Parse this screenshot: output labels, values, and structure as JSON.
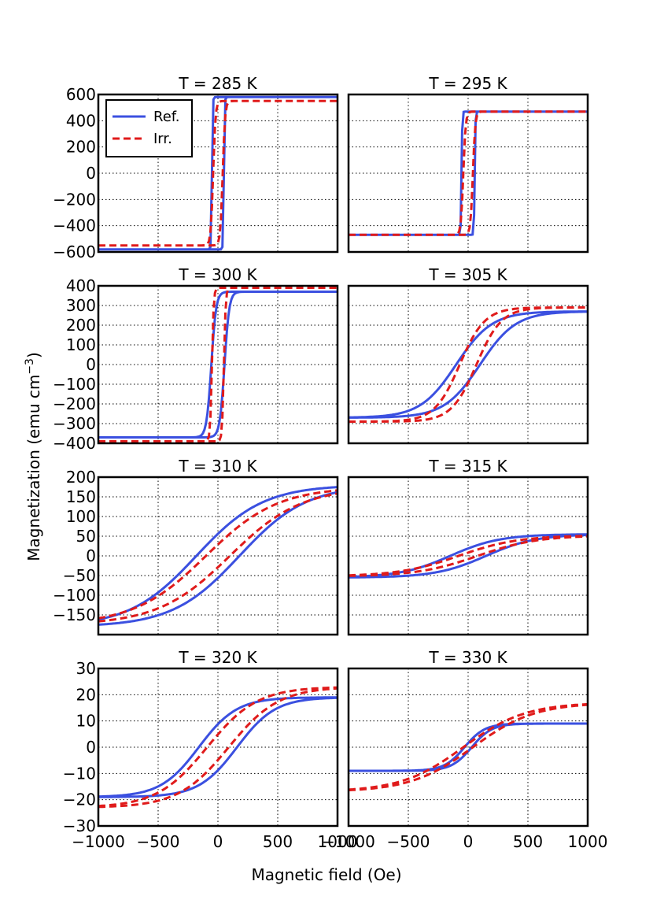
{
  "chart_data": {
    "type": "line",
    "xlabel": "Magnetic field (Oe)",
    "ylabel": "Magnetization (emu cm",
    "ylabel_superscript": "−3",
    "ylabel_close": ")",
    "xlim": [
      -1000,
      1000
    ],
    "x_ticks": [
      "−1000",
      "−500",
      "0",
      "500",
      "1000"
    ],
    "grid": true,
    "legend": {
      "placement": "top-left of first panel",
      "entries": [
        "Ref.",
        "Irr."
      ]
    },
    "series_colors": {
      "Ref.": "#3b50e0",
      "Irr.": "#e01b1b"
    },
    "panels": [
      {
        "title": "T = 285 K",
        "ylim": [
          -600,
          600
        ],
        "y_ticks": [
          "600",
          "400",
          "200",
          "0",
          "−200",
          "−400",
          "−600"
        ],
        "series": [
          {
            "name": "Ref.",
            "style": "solid",
            "kind": "square",
            "Ms": 580,
            "Hc": 50,
            "w": 6
          },
          {
            "name": "Irr.",
            "style": "dashed",
            "kind": "square",
            "Ms": 550,
            "Hc": 40,
            "w": 20
          }
        ]
      },
      {
        "title": "T = 295 K",
        "ylim": [
          -600,
          600
        ],
        "y_ticks": [],
        "series": [
          {
            "name": "Ref.",
            "style": "solid",
            "kind": "square",
            "Ms": 470,
            "Hc": 55,
            "w": 6
          },
          {
            "name": "Irr.",
            "style": "dashed",
            "kind": "square",
            "Ms": 470,
            "Hc": 40,
            "w": 20
          }
        ]
      },
      {
        "title": "T = 300 K",
        "ylim": [
          -400,
          400
        ],
        "y_ticks": [
          "400",
          "300",
          "200",
          "100",
          "0",
          "−100",
          "−200",
          "−300",
          "−400"
        ],
        "series": [
          {
            "name": "Ref.",
            "style": "solid",
            "kind": "square",
            "Ms": 370,
            "Hc": 55,
            "w": 40
          },
          {
            "name": "Irr.",
            "style": "dashed",
            "kind": "square",
            "Ms": 390,
            "Hc": 50,
            "w": 15
          }
        ]
      },
      {
        "title": "T = 305 K",
        "ylim": [
          -400,
          400
        ],
        "y_ticks": [],
        "series": [
          {
            "name": "Ref.",
            "style": "solid",
            "kind": "soft",
            "Ms": 270,
            "Hc": 100,
            "w": 300
          },
          {
            "name": "Irr.",
            "style": "dashed",
            "kind": "soft",
            "Ms": 290,
            "Hc": 70,
            "w": 210
          }
        ]
      },
      {
        "title": "T = 310 K",
        "ylim": [
          -200,
          200
        ],
        "y_ticks": [
          "200",
          "150",
          "100",
          "50",
          "0",
          "−50",
          "−100",
          "−150"
        ],
        "series": [
          {
            "name": "Ref.",
            "style": "solid",
            "kind": "soft",
            "Ms": 180,
            "Hc": 180,
            "w": 560
          },
          {
            "name": "Irr.",
            "style": "dashed",
            "kind": "soft",
            "Ms": 175,
            "Hc": 100,
            "w": 600
          }
        ]
      },
      {
        "title": "T = 315 K",
        "ylim": [
          -200,
          200
        ],
        "y_ticks": [],
        "series": [
          {
            "name": "Ref.",
            "style": "solid",
            "kind": "soft",
            "Ms": 55,
            "Hc": 150,
            "w": 420
          },
          {
            "name": "Irr.",
            "style": "dashed",
            "kind": "soft",
            "Ms": 52,
            "Hc": 80,
            "w": 500
          }
        ]
      },
      {
        "title": "T = 320 K",
        "ylim": [
          -30,
          30
        ],
        "y_ticks": [
          "30",
          "20",
          "10",
          "0",
          "−10",
          "−20",
          "−30"
        ],
        "series": [
          {
            "name": "Ref.",
            "style": "solid",
            "kind": "soft",
            "Ms": 19,
            "Hc": 160,
            "w": 320
          },
          {
            "name": "Irr.",
            "style": "dashed",
            "kind": "soft",
            "Ms": 23,
            "Hc": 90,
            "w": 420
          }
        ]
      },
      {
        "title": "T = 330 K",
        "ylim": [
          -30,
          30
        ],
        "y_ticks": [],
        "series": [
          {
            "name": "Ref.",
            "style": "solid",
            "kind": "soft",
            "Ms": 9,
            "Hc": 30,
            "w": 170
          },
          {
            "name": "Irr.",
            "style": "dashed",
            "kind": "soft",
            "Ms": 17,
            "Hc": 40,
            "w": 520
          }
        ]
      }
    ]
  }
}
